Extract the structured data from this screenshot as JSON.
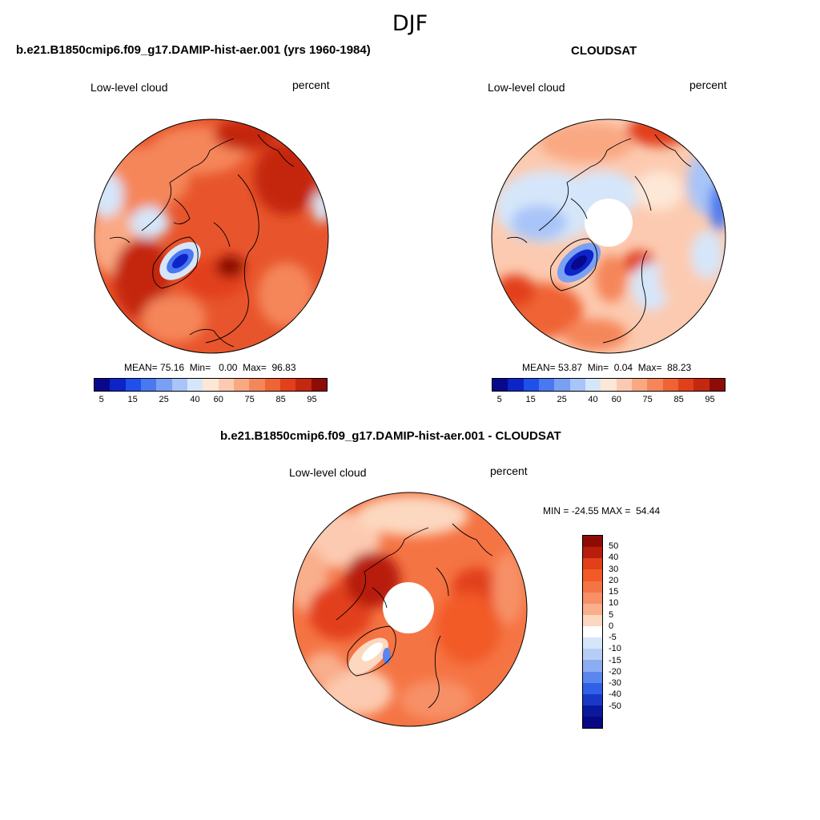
{
  "season": "DJF",
  "panels": {
    "model": {
      "title": "b.e21.B1850cmip6.f09_g17.DAMIP-hist-aer.001 (yrs 1960-1984)",
      "variable": "Low-level cloud",
      "units": "percent",
      "stats": {
        "mean_label": "MEAN=",
        "mean": "75.16",
        "min_label": "Min=",
        "min": "0.00",
        "max_label": "Max=",
        "max": "96.83"
      }
    },
    "obs": {
      "title": "CLOUDSAT",
      "variable": "Low-level cloud",
      "units": "percent",
      "stats": {
        "mean_label": "MEAN=",
        "mean": "53.87",
        "min_label": "Min=",
        "min": "0.04",
        "max_label": "Max=",
        "max": "88.23"
      }
    },
    "diff": {
      "title": "b.e21.B1850cmip6.f09_g17.DAMIP-hist-aer.001 - CLOUDSAT",
      "variable": "Low-level cloud",
      "units": "percent",
      "stats": {
        "min_label": "MIN =",
        "min": "-24.55",
        "max_label": "MAX =",
        "max": "54.44"
      }
    }
  },
  "colorbar_main": {
    "colors": [
      "#08088c",
      "#0c24c8",
      "#2050ea",
      "#4a78f0",
      "#7aa0f4",
      "#a8c4f8",
      "#d6e6fa",
      "#fde7d6",
      "#fccab0",
      "#f9a882",
      "#f5865a",
      "#ef6334",
      "#e2401a",
      "#c42810",
      "#8e0c06"
    ],
    "tick_labels": [
      "5",
      "15",
      "25",
      "40",
      "60",
      "75",
      "85",
      "95"
    ]
  },
  "colorbar_diff": {
    "colors": [
      "#8e0c06",
      "#b81e0c",
      "#e2401a",
      "#f25a28",
      "#f57444",
      "#f79066",
      "#f9ae8c",
      "#fcd8c0",
      "#ffffff",
      "#d6e6fa",
      "#b6cef6",
      "#8cacf2",
      "#5a86ee",
      "#3060e6",
      "#1a38c8",
      "#0a189c",
      "#080884"
    ],
    "tick_labels": [
      "50",
      "40",
      "30",
      "20",
      "15",
      "10",
      "5",
      "0",
      "-5",
      "-10",
      "-15",
      "-20",
      "-30",
      "-40",
      "-50"
    ]
  }
}
